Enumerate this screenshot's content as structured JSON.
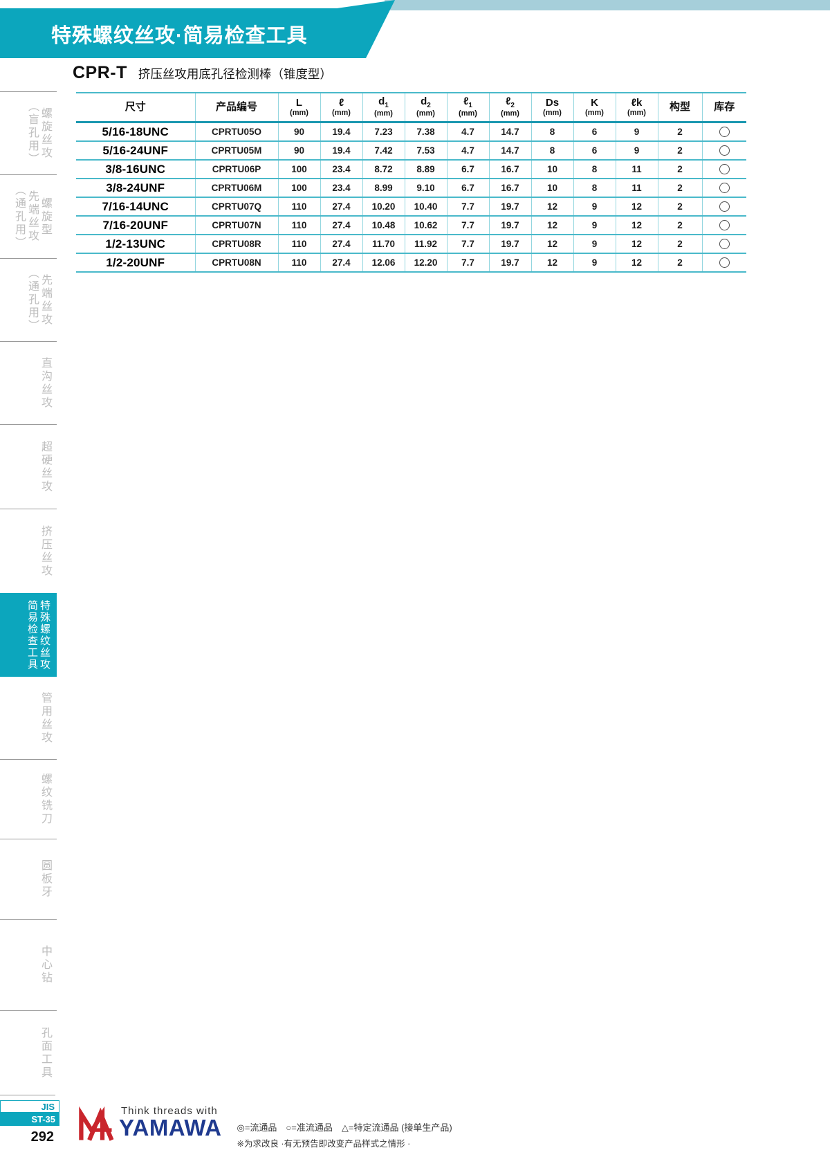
{
  "banner": {
    "title": "特殊螺纹丝攻·简易检查工具"
  },
  "product": {
    "code": "CPR-T",
    "name": "挤压丝攻用底孔径检测棒（锥度型）"
  },
  "sidebar": {
    "items": [
      {
        "lines": [
          "螺旋丝攻",
          "（盲孔用）"
        ],
        "active": false
      },
      {
        "lines": [
          "螺旋型",
          "先端丝攻",
          "（通孔用）"
        ],
        "active": false
      },
      {
        "lines": [
          "先端丝攻",
          "（通孔用）"
        ],
        "active": false
      },
      {
        "lines": [
          "直沟丝攻"
        ],
        "active": false
      },
      {
        "lines": [
          "超硬丝攻"
        ],
        "active": false
      },
      {
        "lines": [
          "挤压丝攻"
        ],
        "active": false
      },
      {
        "lines": [
          "特殊螺纹丝攻",
          "简易检查工具"
        ],
        "active": true
      },
      {
        "lines": [
          "管用丝攻"
        ],
        "active": false
      },
      {
        "lines": [
          "螺纹铣刀"
        ],
        "active": false
      },
      {
        "lines": [
          "圆板牙"
        ],
        "active": false
      },
      {
        "lines": [
          "中心钻"
        ],
        "active": false
      },
      {
        "lines": [
          "孔面工具"
        ],
        "active": false
      }
    ],
    "jis_label": "JIS",
    "standard_label": "ST-35",
    "page_number": "292"
  },
  "table": {
    "columns": [
      {
        "label": "尺寸",
        "sub": "",
        "unit": ""
      },
      {
        "label": "产品编号",
        "sub": "",
        "unit": ""
      },
      {
        "label": "L",
        "sub": "",
        "unit": "(mm)"
      },
      {
        "label": "ℓ",
        "sub": "",
        "unit": "(mm)"
      },
      {
        "label": "d",
        "sub": "1",
        "unit": "(mm)"
      },
      {
        "label": "d",
        "sub": "2",
        "unit": "(mm)"
      },
      {
        "label": "ℓ",
        "sub": "1",
        "unit": "(mm)"
      },
      {
        "label": "ℓ",
        "sub": "2",
        "unit": "(mm)"
      },
      {
        "label": "Ds",
        "sub": "",
        "unit": "(mm)"
      },
      {
        "label": "K",
        "sub": "",
        "unit": "(mm)"
      },
      {
        "label": "ℓk",
        "sub": "",
        "unit": "(mm)"
      },
      {
        "label": "构型",
        "sub": "",
        "unit": ""
      },
      {
        "label": "库存",
        "sub": "",
        "unit": ""
      }
    ],
    "rows": [
      [
        "5/16-18UNC",
        "CPRTU05O",
        "90",
        "19.4",
        "7.23",
        "7.38",
        "4.7",
        "14.7",
        "8",
        "6",
        "9",
        "2",
        "○"
      ],
      [
        "5/16-24UNF",
        "CPRTU05M",
        "90",
        "19.4",
        "7.42",
        "7.53",
        "4.7",
        "14.7",
        "8",
        "6",
        "9",
        "2",
        "○"
      ],
      [
        "3/8-16UNC",
        "CPRTU06P",
        "100",
        "23.4",
        "8.72",
        "8.89",
        "6.7",
        "16.7",
        "10",
        "8",
        "11",
        "2",
        "○"
      ],
      [
        "3/8-24UNF",
        "CPRTU06M",
        "100",
        "23.4",
        "8.99",
        "9.10",
        "6.7",
        "16.7",
        "10",
        "8",
        "11",
        "2",
        "○"
      ],
      [
        "7/16-14UNC",
        "CPRTU07Q",
        "110",
        "27.4",
        "10.20",
        "10.40",
        "7.7",
        "19.7",
        "12",
        "9",
        "12",
        "2",
        "○"
      ],
      [
        "7/16-20UNF",
        "CPRTU07N",
        "110",
        "27.4",
        "10.48",
        "10.62",
        "7.7",
        "19.7",
        "12",
        "9",
        "12",
        "2",
        "○"
      ],
      [
        "1/2-13UNC",
        "CPRTU08R",
        "110",
        "27.4",
        "11.70",
        "11.92",
        "7.7",
        "19.7",
        "12",
        "9",
        "12",
        "2",
        "○"
      ],
      [
        "1/2-20UNF",
        "CPRTU08N",
        "110",
        "27.4",
        "12.06",
        "12.20",
        "7.7",
        "19.7",
        "12",
        "9",
        "12",
        "2",
        "○"
      ]
    ]
  },
  "footer": {
    "tagline": "Think threads with",
    "brand": "YAMAWA",
    "legend": "◎=流通品　○=准流通品　△=特定流通品 (接单生产品)",
    "note": "※为求改良 ·有无预告即改变产品样式之情形 ·"
  },
  "colors": {
    "teal": "#0ca6bd",
    "top_strip": "#a6cfda",
    "table_rule": "#49b9ca",
    "table_rule_light": "#93d6df",
    "header_rule": "#1b98b0",
    "sidebar_text": "#bdbdbd",
    "sidebar_rule": "#9a9a9a",
    "logo_red": "#c9252c",
    "logo_blue": "#1f3a8f"
  }
}
